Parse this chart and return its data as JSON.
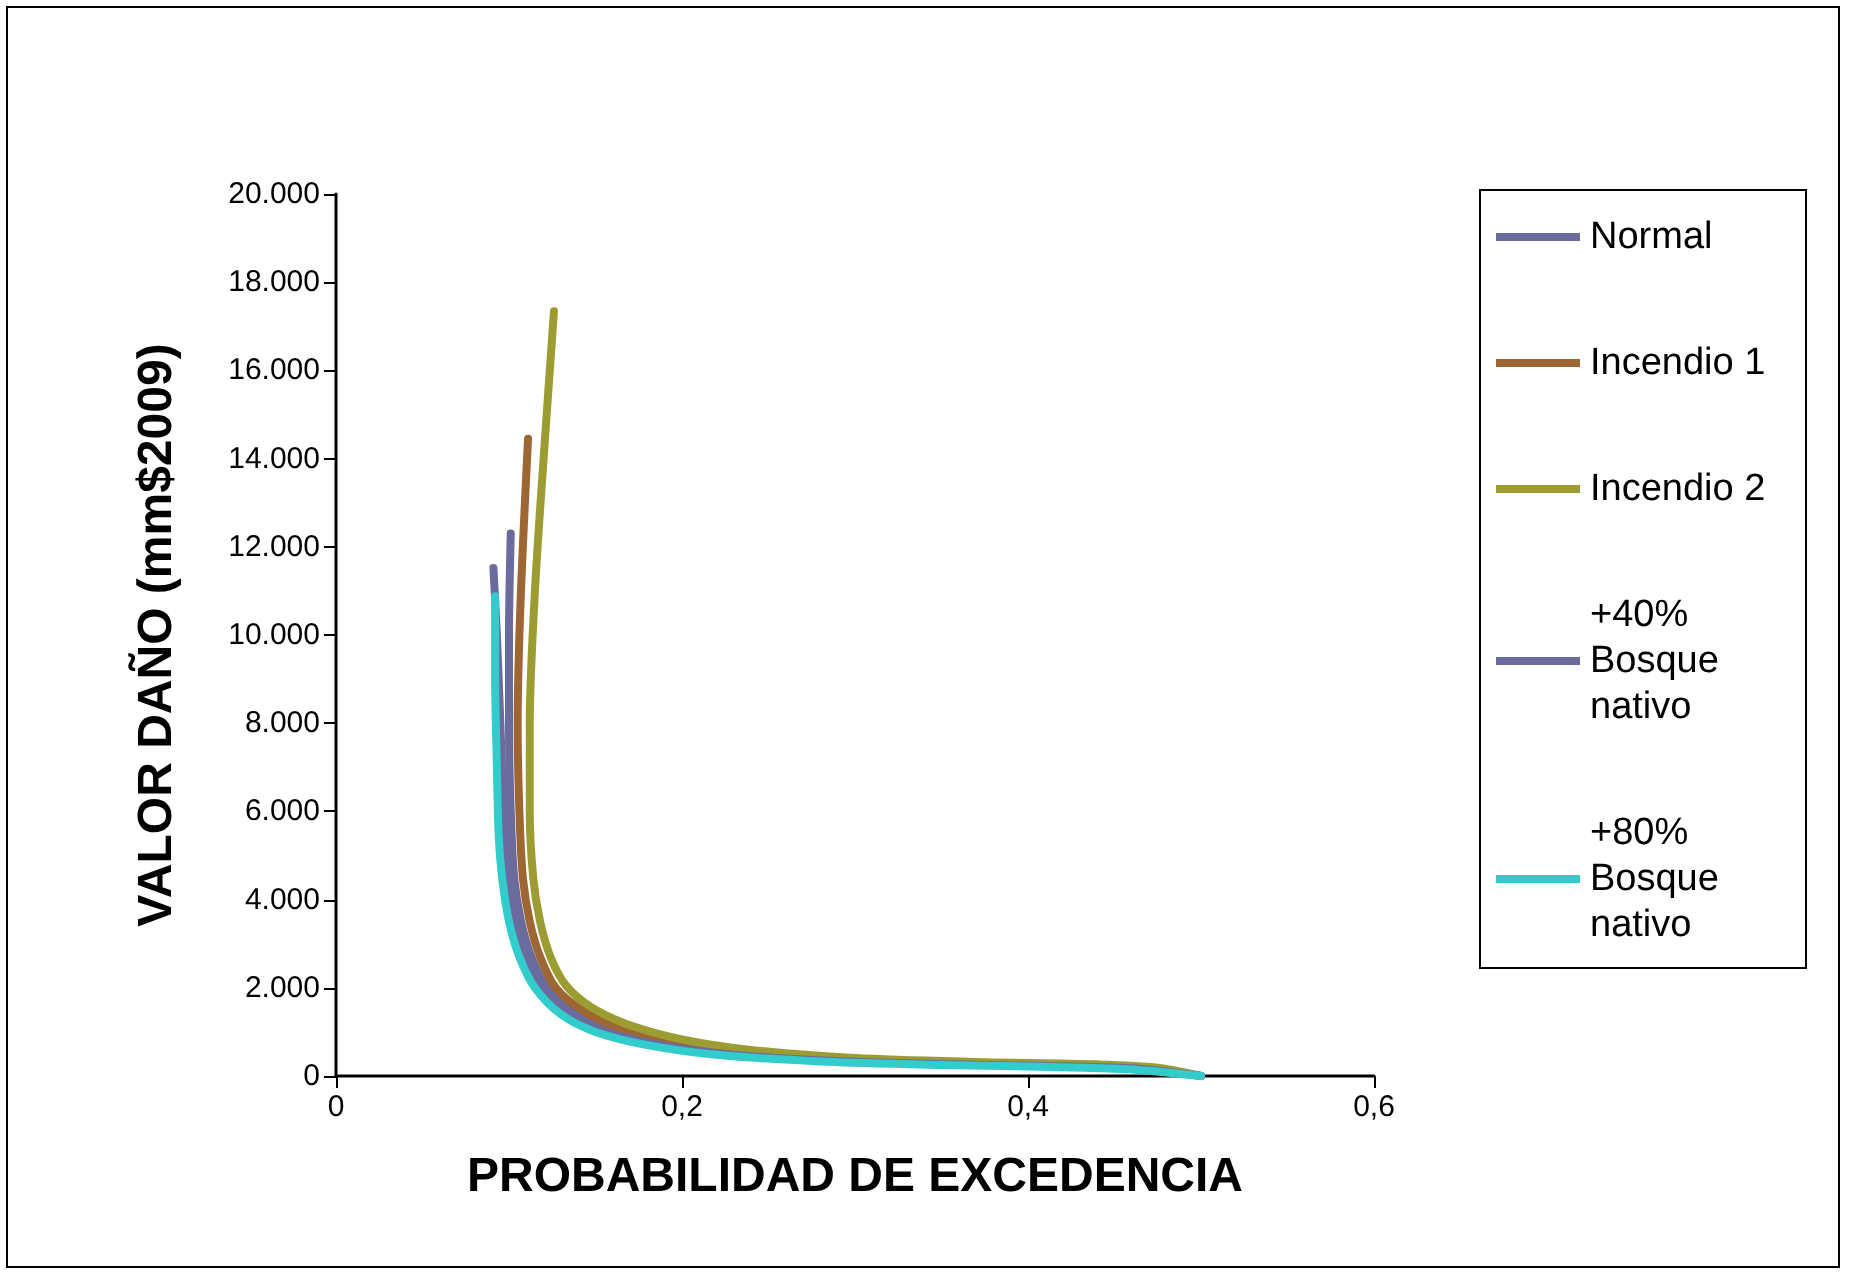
{
  "chart_data": {
    "type": "line",
    "xlabel": "PROBABILIDAD DE EXCEDENCIA",
    "ylabel": "VALOR DAÑO (mm$2009)",
    "xlim": [
      0,
      0.6
    ],
    "xticks": [
      0,
      {
        "value": 0.2,
        "label": "0,2"
      },
      {
        "value": 0.4,
        "label": "0,4"
      },
      {
        "value": 0.6,
        "label": "0,6"
      }
    ],
    "ylim": [
      0,
      20000
    ],
    "yticks": [
      0,
      {
        "value": 2000,
        "label": "2.000"
      },
      {
        "value": 4000,
        "label": "4.000"
      },
      {
        "value": 6000,
        "label": "6.000"
      },
      {
        "value": 8000,
        "label": "8.000"
      },
      {
        "value": 10000,
        "label": "10.000"
      },
      {
        "value": 12000,
        "label": "12.000"
      },
      {
        "value": 14000,
        "label": "14.000"
      },
      {
        "value": 16000,
        "label": "16.000"
      },
      {
        "value": 18000,
        "label": "18.000"
      },
      {
        "value": 20000,
        "label": "20.000"
      }
    ],
    "grid": false,
    "legend": "right",
    "marker": "none",
    "line_style": "solid",
    "series": [
      {
        "name": "Normal",
        "color": "#6b6b9e",
        "x": [
          0.101,
          0.1,
          0.1,
          0.101,
          0.103,
          0.107,
          0.113,
          0.122,
          0.137,
          0.158,
          0.19,
          0.23,
          0.29,
          0.36,
          0.43,
          0.47,
          0.5
        ],
        "values": [
          12300,
          10000,
          8000,
          6000,
          4500,
          3500,
          2700,
          2000,
          1450,
          1050,
          750,
          520,
          360,
          280,
          230,
          170,
          0
        ]
      },
      {
        "name": "Incendio 1",
        "color": "#9e6633",
        "x": [
          0.111,
          0.108,
          0.106,
          0.105,
          0.106,
          0.108,
          0.112,
          0.118,
          0.127,
          0.142,
          0.163,
          0.195,
          0.235,
          0.295,
          0.365,
          0.435,
          0.47,
          0.5
        ],
        "values": [
          14450,
          12000,
          10000,
          8000,
          6000,
          4500,
          3500,
          2700,
          2000,
          1500,
          1100,
          780,
          550,
          380,
          295,
          245,
          180,
          0
        ]
      },
      {
        "name": "Incendio 2",
        "color": "#9c9c33",
        "x": [
          0.126,
          0.12,
          0.115,
          0.112,
          0.112,
          0.114,
          0.118,
          0.124,
          0.133,
          0.148,
          0.17,
          0.2,
          0.24,
          0.3,
          0.37,
          0.44,
          0.475,
          0.5
        ],
        "values": [
          17340,
          14000,
          11000,
          8000,
          6000,
          4500,
          3500,
          2700,
          2050,
          1550,
          1150,
          830,
          590,
          410,
          320,
          265,
          190,
          0
        ]
      },
      {
        "name": "+40% Bosque nativo",
        "color": "#6b6b9e",
        "x": [
          0.091,
          0.093,
          0.095,
          0.097,
          0.1,
          0.104,
          0.11,
          0.119,
          0.134,
          0.155,
          0.185,
          0.225,
          0.285,
          0.355,
          0.425,
          0.465,
          0.5
        ],
        "values": [
          11520,
          10000,
          8000,
          6000,
          4500,
          3500,
          2700,
          2000,
          1400,
          1020,
          720,
          500,
          345,
          265,
          215,
          160,
          0
        ]
      },
      {
        "name": "+80% Bosque nativo",
        "color": "#33cccc",
        "x": [
          0.092,
          0.092,
          0.093,
          0.094,
          0.096,
          0.1,
          0.106,
          0.115,
          0.13,
          0.15,
          0.18,
          0.22,
          0.28,
          0.35,
          0.42,
          0.46,
          0.5
        ],
        "values": [
          10880,
          9000,
          7000,
          5500,
          4500,
          3500,
          2700,
          2000,
          1400,
          1000,
          700,
          480,
          330,
          250,
          200,
          150,
          0
        ]
      }
    ]
  }
}
